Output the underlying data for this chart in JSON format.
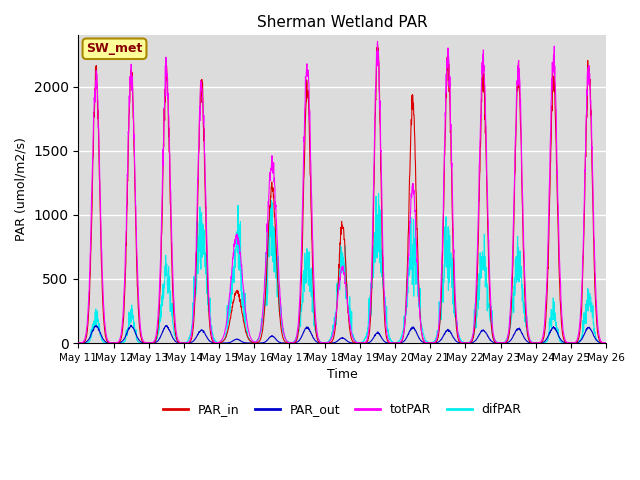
{
  "title": "Sherman Wetland PAR",
  "xlabel": "Time",
  "ylabel": "PAR (umol/m2/s)",
  "ylim": [
    0,
    2400
  ],
  "background_color": "#dcdcdc",
  "grid_color": "white",
  "annotation_text": "SW_met",
  "annotation_facecolor": "#ffff99",
  "annotation_edgecolor": "#aa8800",
  "annotation_textcolor": "#880000",
  "colors": {
    "PAR_in": "#dd0000",
    "PAR_out": "#0000cc",
    "totPAR": "#ff00ff",
    "difPAR": "#00eeee"
  },
  "x_tick_labels": [
    "May 11",
    "May 12",
    "May 13",
    "May 14",
    "May 15",
    "May 16",
    "May 17",
    "May 18",
    "May 19",
    "May 20",
    "May 21",
    "May 22",
    "May 23",
    "May 24",
    "May 25",
    "May 26"
  ],
  "days": 15,
  "points_per_day": 144,
  "par_in_peaks": [
    2080,
    2120,
    2100,
    2030,
    400,
    1220,
    1970,
    950,
    2300,
    1900,
    2220,
    2100,
    2100,
    2050,
    2140
  ],
  "par_in_widths": [
    0.1,
    0.1,
    0.1,
    0.1,
    0.15,
    0.12,
    0.1,
    0.1,
    0.09,
    0.1,
    0.1,
    0.1,
    0.1,
    0.1,
    0.1
  ],
  "par_out_peaks": [
    130,
    130,
    130,
    100,
    30,
    55,
    120,
    40,
    80,
    120,
    100,
    100,
    110,
    120,
    120
  ],
  "par_out_widths": [
    0.12,
    0.12,
    0.12,
    0.12,
    0.1,
    0.1,
    0.12,
    0.1,
    0.1,
    0.12,
    0.12,
    0.12,
    0.12,
    0.12,
    0.12
  ],
  "totpar_peaks": [
    2070,
    2110,
    2110,
    2030,
    840,
    1420,
    2190,
    580,
    2310,
    1220,
    2220,
    2190,
    2110,
    2200,
    2150
  ],
  "totpar_widths": [
    0.11,
    0.11,
    0.11,
    0.11,
    0.16,
    0.14,
    0.11,
    0.13,
    0.1,
    0.11,
    0.11,
    0.11,
    0.11,
    0.11,
    0.11
  ],
  "difpar_peaks": [
    200,
    210,
    490,
    850,
    700,
    860,
    610,
    600,
    800,
    690,
    700,
    600,
    600,
    240,
    360
  ],
  "difpar_widths": [
    0.08,
    0.08,
    0.12,
    0.14,
    0.14,
    0.15,
    0.13,
    0.14,
    0.14,
    0.14,
    0.14,
    0.13,
    0.13,
    0.08,
    0.1
  ]
}
